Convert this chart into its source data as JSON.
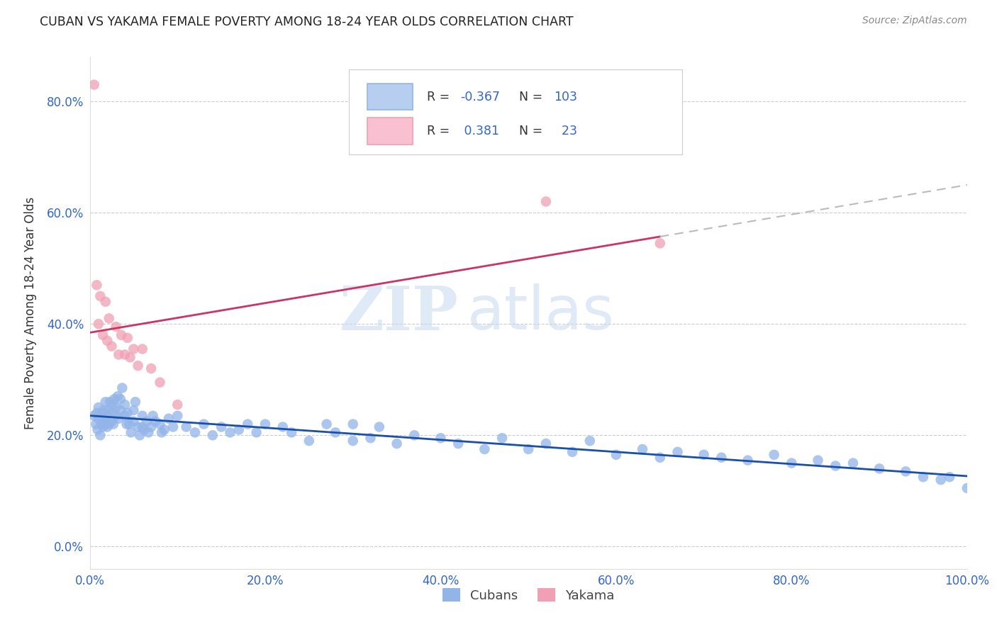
{
  "title": "CUBAN VS YAKAMA FEMALE POVERTY AMONG 18-24 YEAR OLDS CORRELATION CHART",
  "source": "Source: ZipAtlas.com",
  "ylabel": "Female Poverty Among 18-24 Year Olds",
  "xlim": [
    0,
    1.0
  ],
  "ylim": [
    -0.04,
    0.88
  ],
  "xticks": [
    0.0,
    0.2,
    0.4,
    0.6,
    0.8,
    1.0
  ],
  "xtick_labels": [
    "0.0%",
    "20.0%",
    "40.0%",
    "60.0%",
    "80.0%",
    "100.0%"
  ],
  "yticks": [
    0.0,
    0.2,
    0.4,
    0.6,
    0.8
  ],
  "ytick_labels": [
    "0.0%",
    "20.0%",
    "40.0%",
    "60.0%",
    "80.0%"
  ],
  "cuban_color": "#92b4e8",
  "yakama_color": "#f0a0b4",
  "cuban_line_color": "#1a4faa",
  "yakama_line_color": "#cc3366",
  "dash_color": "#bbbbbb",
  "legend_blue_box": "#b8cef0",
  "legend_pink_box": "#f8c0d0",
  "r_cuban": -0.367,
  "n_cuban": 103,
  "r_yakama": 0.381,
  "n_yakama": 23,
  "watermark_zip": "ZIP",
  "watermark_atlas": "atlas",
  "background_color": "#ffffff",
  "stat_color": "#3366cc",
  "label_color": "#333333",
  "tick_color": "#3366cc",
  "cuban_x": [
    0.005,
    0.007,
    0.008,
    0.009,
    0.01,
    0.01,
    0.012,
    0.013,
    0.014,
    0.015,
    0.015,
    0.016,
    0.017,
    0.018,
    0.02,
    0.02,
    0.021,
    0.022,
    0.023,
    0.025,
    0.025,
    0.026,
    0.027,
    0.028,
    0.03,
    0.03,
    0.032,
    0.033,
    0.035,
    0.035,
    0.037,
    0.04,
    0.04,
    0.042,
    0.043,
    0.045,
    0.047,
    0.05,
    0.05,
    0.052,
    0.055,
    0.057,
    0.06,
    0.06,
    0.062,
    0.065,
    0.067,
    0.07,
    0.072,
    0.075,
    0.08,
    0.082,
    0.085,
    0.09,
    0.095,
    0.1,
    0.11,
    0.12,
    0.13,
    0.14,
    0.15,
    0.16,
    0.17,
    0.18,
    0.19,
    0.2,
    0.22,
    0.23,
    0.25,
    0.27,
    0.28,
    0.3,
    0.3,
    0.32,
    0.33,
    0.35,
    0.37,
    0.4,
    0.42,
    0.45,
    0.47,
    0.5,
    0.52,
    0.55,
    0.57,
    0.6,
    0.63,
    0.65,
    0.67,
    0.7,
    0.72,
    0.75,
    0.78,
    0.8,
    0.83,
    0.85,
    0.87,
    0.9,
    0.93,
    0.95,
    0.97,
    0.98,
    1.0
  ],
  "cuban_y": [
    0.235,
    0.22,
    0.24,
    0.21,
    0.23,
    0.25,
    0.2,
    0.22,
    0.24,
    0.215,
    0.23,
    0.245,
    0.22,
    0.26,
    0.215,
    0.235,
    0.245,
    0.22,
    0.26,
    0.225,
    0.24,
    0.255,
    0.22,
    0.265,
    0.235,
    0.25,
    0.27,
    0.23,
    0.245,
    0.265,
    0.285,
    0.235,
    0.255,
    0.22,
    0.24,
    0.22,
    0.205,
    0.225,
    0.245,
    0.26,
    0.215,
    0.2,
    0.215,
    0.235,
    0.21,
    0.225,
    0.205,
    0.215,
    0.235,
    0.225,
    0.22,
    0.205,
    0.21,
    0.23,
    0.215,
    0.235,
    0.215,
    0.205,
    0.22,
    0.2,
    0.215,
    0.205,
    0.21,
    0.22,
    0.205,
    0.22,
    0.215,
    0.205,
    0.19,
    0.22,
    0.205,
    0.19,
    0.22,
    0.195,
    0.215,
    0.185,
    0.2,
    0.195,
    0.185,
    0.175,
    0.195,
    0.175,
    0.185,
    0.17,
    0.19,
    0.165,
    0.175,
    0.16,
    0.17,
    0.165,
    0.16,
    0.155,
    0.165,
    0.15,
    0.155,
    0.145,
    0.15,
    0.14,
    0.135,
    0.125,
    0.12,
    0.125,
    0.105
  ],
  "yakama_x": [
    0.005,
    0.008,
    0.01,
    0.012,
    0.015,
    0.018,
    0.02,
    0.022,
    0.025,
    0.03,
    0.033,
    0.036,
    0.04,
    0.043,
    0.046,
    0.05,
    0.055,
    0.06,
    0.07,
    0.08,
    0.1,
    0.52,
    0.65
  ],
  "yakama_y": [
    0.83,
    0.47,
    0.4,
    0.45,
    0.38,
    0.44,
    0.37,
    0.41,
    0.36,
    0.395,
    0.345,
    0.38,
    0.345,
    0.375,
    0.34,
    0.355,
    0.325,
    0.355,
    0.32,
    0.295,
    0.255,
    0.62,
    0.545
  ]
}
